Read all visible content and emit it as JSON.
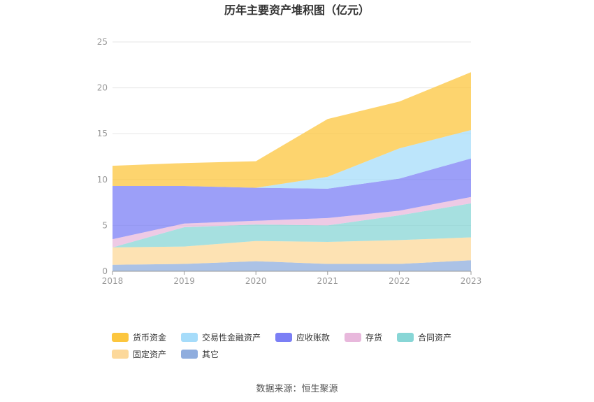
{
  "chart_data": {
    "type": "area",
    "title": "历年主要资产堆积图（亿元）",
    "x": [
      "2018",
      "2019",
      "2020",
      "2021",
      "2022",
      "2023"
    ],
    "ylim": [
      0,
      25
    ],
    "yticks": [
      0,
      5,
      10,
      15,
      20,
      25
    ],
    "stacked": true,
    "grid": true,
    "legend_position": "bottom",
    "series": [
      {
        "name": "其它",
        "color": "#8fadde",
        "values": [
          0.7,
          0.8,
          1.1,
          0.8,
          0.8,
          1.2
        ]
      },
      {
        "name": "固定资产",
        "color": "#fcd89a",
        "values": [
          1.9,
          1.9,
          2.2,
          2.4,
          2.6,
          2.5
        ]
      },
      {
        "name": "合同资产",
        "color": "#88d6d6",
        "values": [
          0.0,
          2.1,
          1.8,
          1.8,
          2.7,
          3.7
        ]
      },
      {
        "name": "存货",
        "color": "#e8b8dc",
        "values": [
          0.9,
          0.4,
          0.4,
          0.8,
          0.5,
          0.7
        ]
      },
      {
        "name": "应收账款",
        "color": "#7b7ff5",
        "values": [
          5.8,
          4.1,
          3.6,
          3.2,
          3.5,
          4.2
        ]
      },
      {
        "name": "交易性金融资产",
        "color": "#a6dcfa",
        "values": [
          0.0,
          0.0,
          0.0,
          1.3,
          3.3,
          3.1
        ]
      },
      {
        "name": "货币资金",
        "color": "#fcc63e",
        "values": [
          2.2,
          2.5,
          2.9,
          6.3,
          5.1,
          6.3
        ]
      }
    ],
    "legend_order": [
      "货币资金",
      "交易性金融资产",
      "应收账款",
      "存货",
      "合同资产",
      "固定资产",
      "其它"
    ]
  },
  "source_text": "数据来源：恒生聚源"
}
